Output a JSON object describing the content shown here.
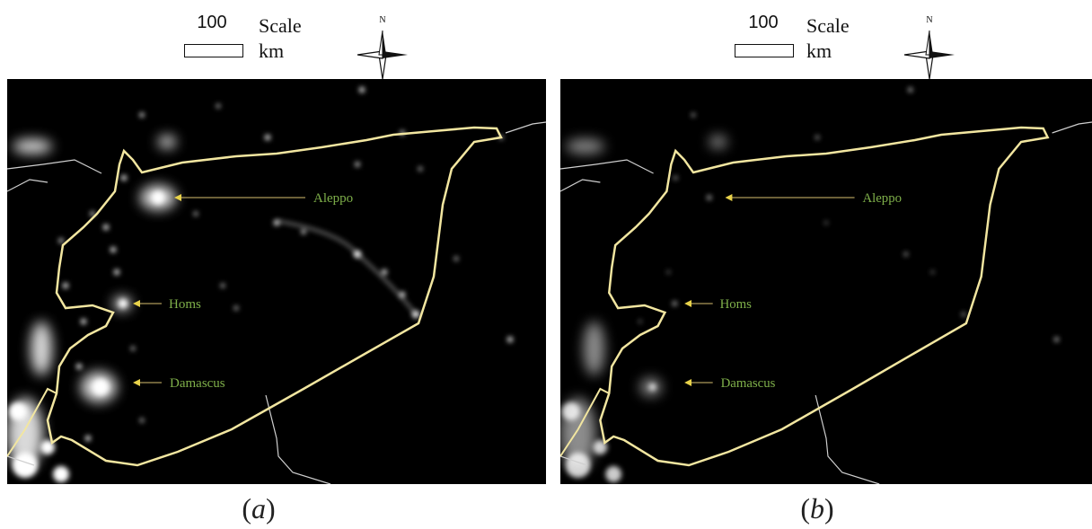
{
  "colors": {
    "background": "#ffffff",
    "map_background": "#000000",
    "border_line": "#f2e6a0",
    "neighbor_border": "#cfcfcf",
    "city_label": "#7fb04a",
    "leader_line": "#d8c070",
    "arrowhead": "#e8d24a",
    "lights": "#ffffff"
  },
  "panels": [
    {
      "scale": {
        "number": "100",
        "word": "Scale",
        "unit": "km"
      },
      "north_label": "N",
      "compass_icon": "north-arrow-compass-icon",
      "cities": [
        {
          "name": "Aleppo"
        },
        {
          "name": "Homs"
        },
        {
          "name": "Damascus"
        }
      ],
      "caption": {
        "open": "(",
        "letter": "a",
        "close": ")"
      },
      "brightness": "high"
    },
    {
      "scale": {
        "number": "100",
        "word": "Scale",
        "unit": "km"
      },
      "north_label": "N",
      "compass_icon": "north-arrow-compass-icon",
      "cities": [
        {
          "name": "Aleppo"
        },
        {
          "name": "Homs"
        },
        {
          "name": "Damascus"
        }
      ],
      "caption": {
        "open": "(",
        "letter": "b",
        "close": ")"
      },
      "brightness": "low"
    }
  ]
}
